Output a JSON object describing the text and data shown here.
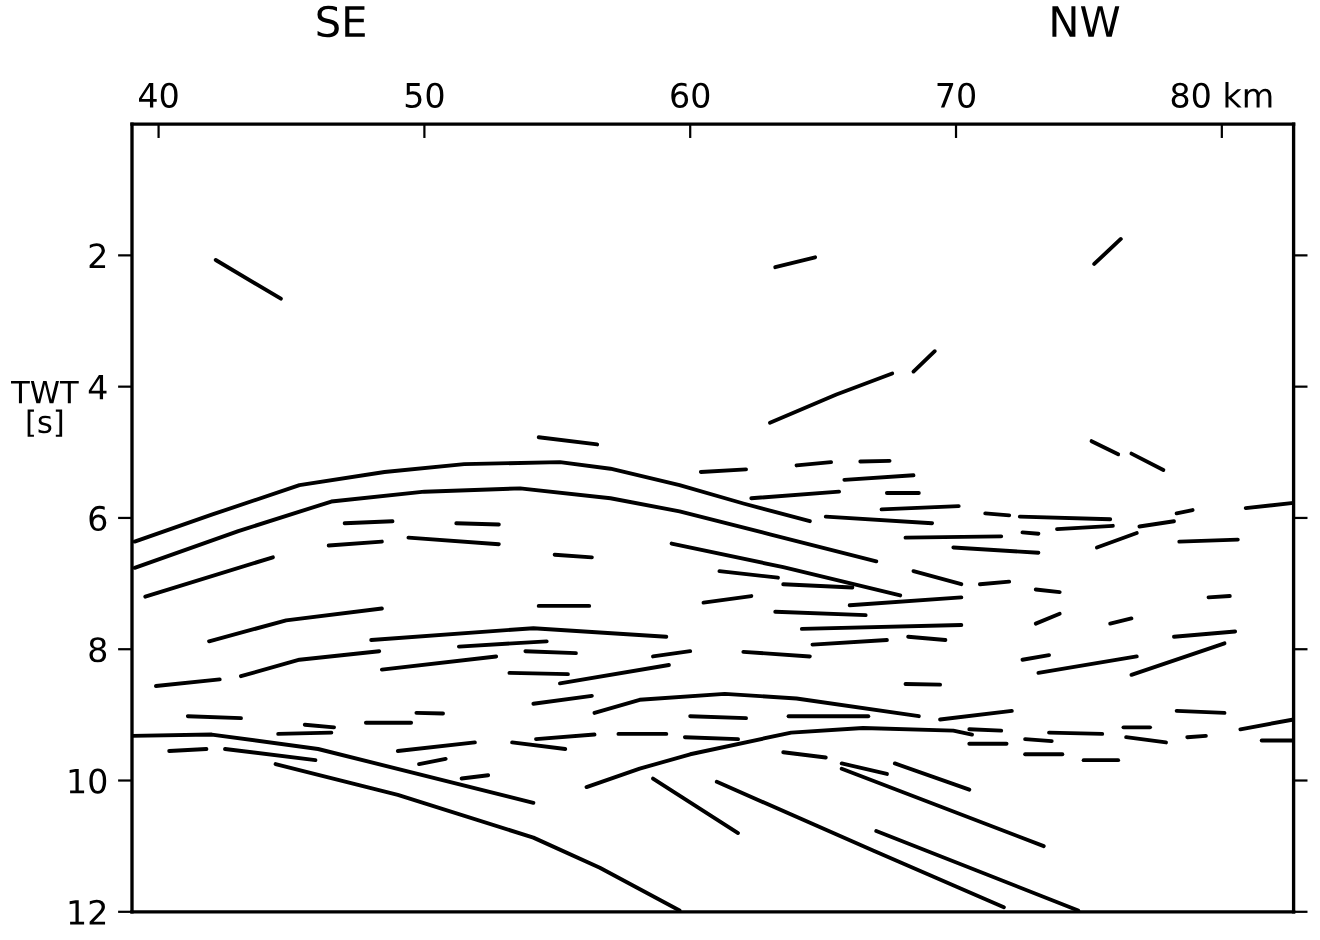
{
  "chart_data": {
    "type": "line",
    "ylabel": "TWT\n[s]",
    "annotations": [
      "SE",
      "NW"
    ],
    "xlim": [
      39,
      82.7
    ],
    "xticks": [
      40,
      50,
      60,
      70,
      {
        "value": 80,
        "label": "80 km"
      }
    ],
    "ylim": [
      12,
      0
    ],
    "yticks": [
      2,
      4,
      6,
      8,
      10,
      12
    ],
    "marker": "none",
    "line_style": "solid",
    "series": [
      {
        "color": "#000000",
        "x": [
          42.15,
          44.6
        ],
        "values": [
          2.07,
          2.66
        ]
      },
      {
        "color": "#000000",
        "x": [
          63.2,
          64.7
        ],
        "values": [
          2.18,
          2.03
        ]
      },
      {
        "color": "#000000",
        "x": [
          75.2,
          76.2
        ],
        "values": [
          2.13,
          1.75
        ]
      },
      {
        "color": "#000000",
        "x": [
          39.1,
          42,
          45.3,
          48.5,
          51.5,
          55.1,
          57,
          59.6,
          62,
          64.5
        ],
        "values": [
          6.36,
          5.95,
          5.5,
          5.3,
          5.18,
          5.15,
          5.25,
          5.5,
          5.78,
          6.05
        ]
      },
      {
        "color": "#000000",
        "x": [
          39.1,
          43,
          46.5,
          50,
          53.6,
          57,
          59.6,
          63,
          67
        ],
        "values": [
          6.76,
          6.2,
          5.75,
          5.6,
          5.55,
          5.7,
          5.9,
          6.25,
          6.66
        ]
      },
      {
        "color": "#000000",
        "x": [
          39.5,
          44.3
        ],
        "values": [
          7.2,
          6.6
        ]
      },
      {
        "color": "#000000",
        "x": [
          46.4,
          48.4
        ],
        "values": [
          6.42,
          6.36
        ]
      },
      {
        "color": "#000000",
        "x": [
          49.4,
          52.8
        ],
        "values": [
          6.3,
          6.4
        ]
      },
      {
        "color": "#000000",
        "x": [
          47.0,
          48.8
        ],
        "values": [
          6.08,
          6.05
        ]
      },
      {
        "color": "#000000",
        "x": [
          51.2,
          52.8
        ],
        "values": [
          6.08,
          6.1
        ]
      },
      {
        "color": "#000000",
        "x": [
          54.9,
          56.3
        ],
        "values": [
          6.56,
          6.6
        ]
      },
      {
        "color": "#000000",
        "x": [
          54.3,
          56.2
        ],
        "values": [
          7.34,
          7.34
        ]
      },
      {
        "color": "#000000",
        "x": [
          54.3,
          56.5
        ],
        "values": [
          4.77,
          4.88
        ]
      },
      {
        "color": "#000000",
        "x": [
          41.9,
          44.8,
          48.4
        ],
        "values": [
          7.88,
          7.56,
          7.38
        ]
      },
      {
        "color": "#000000",
        "x": [
          48.0,
          54.1,
          59.1
        ],
        "values": [
          7.86,
          7.68,
          7.81
        ]
      },
      {
        "color": "#000000",
        "x": [
          39.9,
          42.3
        ],
        "values": [
          8.56,
          8.46
        ]
      },
      {
        "color": "#000000",
        "x": [
          43.1,
          45.3,
          48.3
        ],
        "values": [
          8.41,
          8.16,
          8.03
        ]
      },
      {
        "color": "#000000",
        "x": [
          48.4,
          52.7
        ],
        "values": [
          8.31,
          8.11
        ]
      },
      {
        "color": "#000000",
        "x": [
          51.3,
          54.6
        ],
        "values": [
          7.96,
          7.88
        ]
      },
      {
        "color": "#000000",
        "x": [
          53.8,
          55.7
        ],
        "values": [
          8.03,
          8.06
        ]
      },
      {
        "color": "#000000",
        "x": [
          53.2,
          55.4
        ],
        "values": [
          8.36,
          8.38
        ]
      },
      {
        "color": "#000000",
        "x": [
          55.1,
          59.2
        ],
        "values": [
          8.52,
          8.24
        ]
      },
      {
        "color": "#000000",
        "x": [
          54.1,
          56.3
        ],
        "values": [
          8.83,
          8.71
        ]
      },
      {
        "color": "#000000",
        "x": [
          56.4,
          58.1,
          61.3,
          64,
          68.6
        ],
        "values": [
          8.97,
          8.77,
          8.68,
          8.75,
          9.02
        ]
      },
      {
        "color": "#000000",
        "x": [
          41.1,
          43.1
        ],
        "values": [
          9.02,
          9.05
        ]
      },
      {
        "color": "#000000",
        "x": [
          44.5,
          46.5
        ],
        "values": [
          9.29,
          9.27
        ]
      },
      {
        "color": "#000000",
        "x": [
          45.5,
          46.6
        ],
        "values": [
          9.15,
          9.19
        ]
      },
      {
        "color": "#000000",
        "x": [
          47.8,
          49.5
        ],
        "values": [
          9.12,
          9.12
        ]
      },
      {
        "color": "#000000",
        "x": [
          49.7,
          50.7
        ],
        "values": [
          8.97,
          8.98
        ]
      },
      {
        "color": "#000000",
        "x": [
          49.0,
          51.9
        ],
        "values": [
          9.55,
          9.42
        ]
      },
      {
        "color": "#000000",
        "x": [
          49.8,
          50.8
        ],
        "values": [
          9.75,
          9.67
        ]
      },
      {
        "color": "#000000",
        "x": [
          51.4,
          52.4
        ],
        "values": [
          9.97,
          9.92
        ]
      },
      {
        "color": "#000000",
        "x": [
          53.3,
          55.3
        ],
        "values": [
          9.42,
          9.52
        ]
      },
      {
        "color": "#000000",
        "x": [
          54.2,
          56.4
        ],
        "values": [
          9.37,
          9.3
        ]
      },
      {
        "color": "#000000",
        "x": [
          57.3,
          59.1
        ],
        "values": [
          9.29,
          9.29
        ]
      },
      {
        "color": "#000000",
        "x": [
          40.4,
          41.8
        ],
        "values": [
          9.55,
          9.52
        ]
      },
      {
        "color": "#000000",
        "x": [
          42.5,
          45.9
        ],
        "values": [
          9.52,
          9.69
        ]
      },
      {
        "color": "#000000",
        "x": [
          39.0,
          42.0,
          46.0,
          54.1
        ],
        "values": [
          9.32,
          9.3,
          9.52,
          10.34
        ]
      },
      {
        "color": "#000000",
        "x": [
          44.4,
          49.0,
          54.1,
          56.6,
          59.6
        ],
        "values": [
          9.75,
          10.22,
          10.87,
          11.33,
          11.98
        ]
      },
      {
        "color": "#000000",
        "x": [
          56.1,
          58.1,
          60,
          63.8,
          66.5,
          69.9,
          70.6
        ],
        "values": [
          10.1,
          9.82,
          9.6,
          9.27,
          9.2,
          9.24,
          9.3
        ]
      },
      {
        "color": "#000000",
        "x": [
          58.6,
          61.8
        ],
        "values": [
          9.97,
          10.8
        ]
      },
      {
        "color": "#000000",
        "x": [
          60.0,
          62.1
        ],
        "values": [
          9.02,
          9.05
        ]
      },
      {
        "color": "#000000",
        "x": [
          63.7,
          66.7
        ],
        "values": [
          9.02,
          9.02
        ]
      },
      {
        "color": "#000000",
        "x": [
          69.4,
          72.1
        ],
        "values": [
          9.07,
          8.94
        ]
      },
      {
        "color": "#000000",
        "x": [
          59.8,
          61.8
        ],
        "values": [
          9.34,
          9.37
        ]
      },
      {
        "color": "#000000",
        "x": [
          63.5,
          65.1
        ],
        "values": [
          9.57,
          9.65
        ]
      },
      {
        "color": "#000000",
        "x": [
          65.7,
          67.4
        ],
        "values": [
          9.74,
          9.9
        ]
      },
      {
        "color": "#000000",
        "x": [
          67.7,
          70.5
        ],
        "values": [
          9.74,
          10.14
        ]
      },
      {
        "color": "#000000",
        "x": [
          65.7,
          73.3
        ],
        "values": [
          9.82,
          11.0
        ]
      },
      {
        "color": "#000000",
        "x": [
          61.0,
          66.9,
          71.8
        ],
        "values": [
          10.02,
          11.07,
          11.93
        ]
      },
      {
        "color": "#000000",
        "x": [
          67.0,
          74.6
        ],
        "values": [
          10.77,
          11.98
        ]
      },
      {
        "color": "#000000",
        "x": [
          70.5,
          71.7
        ],
        "values": [
          9.22,
          9.24
        ]
      },
      {
        "color": "#000000",
        "x": [
          70.5,
          71.9
        ],
        "values": [
          9.44,
          9.44
        ]
      },
      {
        "color": "#000000",
        "x": [
          72.6,
          73.6
        ],
        "values": [
          9.37,
          9.4
        ]
      },
      {
        "color": "#000000",
        "x": [
          72.6,
          74.0
        ],
        "values": [
          9.6,
          9.6
        ]
      },
      {
        "color": "#000000",
        "x": [
          73.5,
          75.5
        ],
        "values": [
          9.27,
          9.29
        ]
      },
      {
        "color": "#000000",
        "x": [
          74.8,
          76.1
        ],
        "values": [
          9.69,
          9.69
        ]
      },
      {
        "color": "#000000",
        "x": [
          76.3,
          77.3
        ],
        "values": [
          9.19,
          9.19
        ]
      },
      {
        "color": "#000000",
        "x": [
          76.4,
          77.9
        ],
        "values": [
          9.34,
          9.42
        ]
      },
      {
        "color": "#000000",
        "x": [
          78.7,
          79.4
        ],
        "values": [
          9.34,
          9.32
        ]
      },
      {
        "color": "#000000",
        "x": [
          78.3,
          80.1
        ],
        "values": [
          8.94,
          8.97
        ]
      },
      {
        "color": "#000000",
        "x": [
          80.7,
          82.7
        ],
        "values": [
          9.22,
          9.07
        ]
      },
      {
        "color": "#000000",
        "x": [
          81.5,
          82.7
        ],
        "values": [
          9.39,
          9.39
        ]
      },
      {
        "color": "#000000",
        "x": [
          68.1,
          69.4
        ],
        "values": [
          8.53,
          8.54
        ]
      },
      {
        "color": "#000000",
        "x": [
          72.5,
          73.5
        ],
        "values": [
          8.16,
          8.09
        ]
      },
      {
        "color": "#000000",
        "x": [
          73.1,
          76.8
        ],
        "values": [
          8.36,
          8.11
        ]
      },
      {
        "color": "#000000",
        "x": [
          76.6,
          80.1
        ],
        "values": [
          8.39,
          7.91
        ]
      },
      {
        "color": "#000000",
        "x": [
          78.2,
          80.5
        ],
        "values": [
          7.81,
          7.73
        ]
      },
      {
        "color": "#000000",
        "x": [
          73.0,
          73.9
        ],
        "values": [
          7.61,
          7.46
        ]
      },
      {
        "color": "#000000",
        "x": [
          75.8,
          76.6
        ],
        "values": [
          7.61,
          7.53
        ]
      },
      {
        "color": "#000000",
        "x": [
          79.5,
          80.3
        ],
        "values": [
          7.21,
          7.19
        ]
      },
      {
        "color": "#000000",
        "x": [
          62.0,
          64.5
        ],
        "values": [
          8.04,
          8.11
        ]
      },
      {
        "color": "#000000",
        "x": [
          64.6,
          67.4
        ],
        "values": [
          7.93,
          7.86
        ]
      },
      {
        "color": "#000000",
        "x": [
          68.2,
          69.6
        ],
        "values": [
          7.81,
          7.86
        ]
      },
      {
        "color": "#000000",
        "x": [
          64.2,
          70.2
        ],
        "values": [
          7.69,
          7.63
        ]
      },
      {
        "color": "#000000",
        "x": [
          63.2,
          66.6
        ],
        "values": [
          7.43,
          7.48
        ]
      },
      {
        "color": "#000000",
        "x": [
          66.0,
          70.2
        ],
        "values": [
          7.33,
          7.21
        ]
      },
      {
        "color": "#000000",
        "x": [
          60.5,
          62.3
        ],
        "values": [
          7.29,
          7.19
        ]
      },
      {
        "color": "#000000",
        "x": [
          58.6,
          60.0
        ],
        "values": [
          8.11,
          8.03
        ]
      },
      {
        "color": "#000000",
        "x": [
          63.0,
          65.5,
          67.6
        ],
        "values": [
          4.55,
          4.12,
          3.8
        ]
      },
      {
        "color": "#000000",
        "x": [
          68.4,
          69.2
        ],
        "values": [
          3.77,
          3.46
        ]
      },
      {
        "color": "#000000",
        "x": [
          75.1,
          76.1
        ],
        "values": [
          4.83,
          5.03
        ]
      },
      {
        "color": "#000000",
        "x": [
          76.6,
          77.8
        ],
        "values": [
          5.02,
          5.27
        ]
      },
      {
        "color": "#000000",
        "x": [
          60.4,
          62.1
        ],
        "values": [
          5.3,
          5.26
        ]
      },
      {
        "color": "#000000",
        "x": [
          64.0,
          65.3
        ],
        "values": [
          5.2,
          5.15
        ]
      },
      {
        "color": "#000000",
        "x": [
          66.4,
          67.5
        ],
        "values": [
          5.14,
          5.13
        ]
      },
      {
        "color": "#000000",
        "x": [
          65.8,
          68.4
        ],
        "values": [
          5.42,
          5.35
        ]
      },
      {
        "color": "#000000",
        "x": [
          62.3,
          65.6
        ],
        "values": [
          5.7,
          5.6
        ]
      },
      {
        "color": "#000000",
        "x": [
          67.4,
          68.6
        ],
        "values": [
          5.62,
          5.62
        ]
      },
      {
        "color": "#000000",
        "x": [
          67.2,
          70.1
        ],
        "values": [
          5.87,
          5.82
        ]
      },
      {
        "color": "#000000",
        "x": [
          65.1,
          69.1
        ],
        "values": [
          5.98,
          6.08
        ]
      },
      {
        "color": "#000000",
        "x": [
          71.1,
          72.0
        ],
        "values": [
          5.93,
          5.96
        ]
      },
      {
        "color": "#000000",
        "x": [
          72.4,
          75.8
        ],
        "values": [
          5.98,
          6.02
        ]
      },
      {
        "color": "#000000",
        "x": [
          73.8,
          75.9
        ],
        "values": [
          6.17,
          6.12
        ]
      },
      {
        "color": "#000000",
        "x": [
          72.5,
          73.1
        ],
        "values": [
          6.22,
          6.24
        ]
      },
      {
        "color": "#000000",
        "x": [
          68.1,
          71.7
        ],
        "values": [
          6.3,
          6.28
        ]
      },
      {
        "color": "#000000",
        "x": [
          69.9,
          73.1
        ],
        "values": [
          6.45,
          6.53
        ]
      },
      {
        "color": "#000000",
        "x": [
          75.3,
          76.8
        ],
        "values": [
          6.45,
          6.23
        ]
      },
      {
        "color": "#000000",
        "x": [
          76.9,
          78.2
        ],
        "values": [
          6.13,
          6.05
        ]
      },
      {
        "color": "#000000",
        "x": [
          78.3,
          78.9
        ],
        "values": [
          5.93,
          5.88
        ]
      },
      {
        "color": "#000000",
        "x": [
          78.4,
          80.6
        ],
        "values": [
          6.36,
          6.33
        ]
      },
      {
        "color": "#000000",
        "x": [
          80.9,
          82.7
        ],
        "values": [
          5.85,
          5.77
        ]
      },
      {
        "color": "#000000",
        "x": [
          59.3,
          63.5,
          67.9
        ],
        "values": [
          6.39,
          6.75,
          7.18
        ]
      },
      {
        "color": "#000000",
        "x": [
          61.1,
          63.3
        ],
        "values": [
          6.81,
          6.91
        ]
      },
      {
        "color": "#000000",
        "x": [
          63.5,
          66.1
        ],
        "values": [
          7.01,
          7.06
        ]
      },
      {
        "color": "#000000",
        "x": [
          68.4,
          70.2
        ],
        "values": [
          6.81,
          7.01
        ]
      },
      {
        "color": "#000000",
        "x": [
          70.9,
          72.0
        ],
        "values": [
          7.01,
          6.97
        ]
      },
      {
        "color": "#000000",
        "x": [
          73.0,
          73.9
        ],
        "values": [
          7.09,
          7.13
        ]
      }
    ]
  }
}
